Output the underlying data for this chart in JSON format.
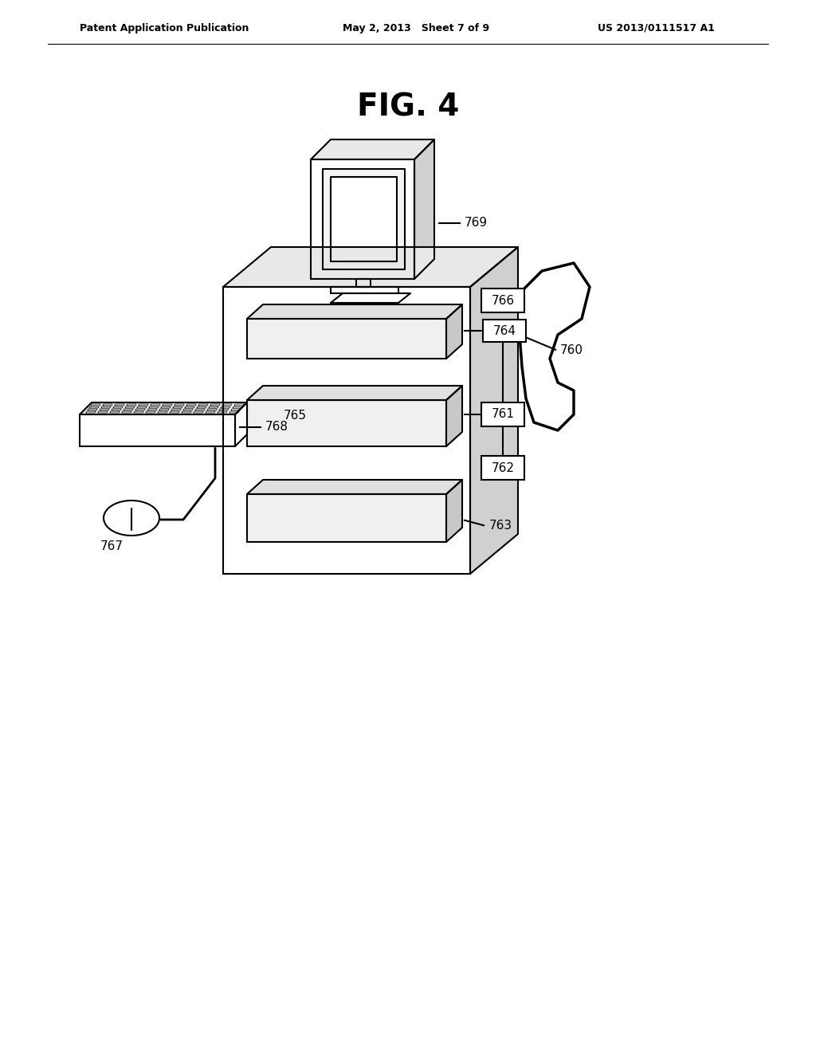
{
  "title": "FIG. 4",
  "header_left": "Patent Application Publication",
  "header_center": "May 2, 2013   Sheet 7 of 9",
  "header_right": "US 2013/0111517 A1",
  "background_color": "#ffffff",
  "line_color": "#000000",
  "label_769": "769",
  "label_768": "768",
  "label_767": "767",
  "label_760": "760",
  "label_764": "764",
  "label_766": "766",
  "label_761": "761",
  "label_765": "765",
  "label_762": "762",
  "label_763": "763"
}
